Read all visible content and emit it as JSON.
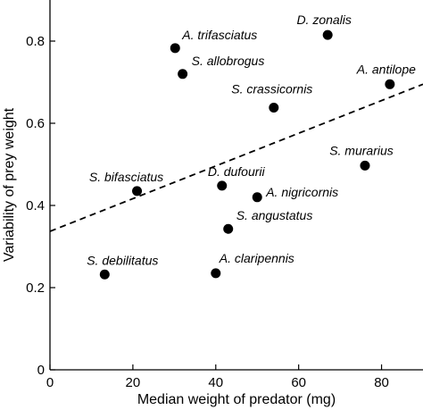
{
  "chart_data": {
    "type": "scatter",
    "title": "",
    "xlabel": "Median weight of predator (mg)",
    "ylabel": "Variability of prey weight",
    "xlim": [
      0,
      90
    ],
    "ylim": [
      0,
      0.9
    ],
    "xticks": [
      0,
      20,
      40,
      60,
      80
    ],
    "yticks": [
      0,
      0.2,
      0.4,
      0.6,
      0.8
    ],
    "xtick_labels": [
      "0",
      "20",
      "40",
      "60",
      "80"
    ],
    "ytick_labels": [
      "0",
      "0.2",
      "0.4",
      "0.6",
      "0.8"
    ],
    "grid": false,
    "legend": "none",
    "points": [
      {
        "label": "A. trifasciatus",
        "x": 30.2,
        "y": 0.783
      },
      {
        "label": "D. zonalis",
        "x": 67.0,
        "y": 0.815
      },
      {
        "label": "S. allobrogus",
        "x": 32.0,
        "y": 0.72
      },
      {
        "label": "A. antilope",
        "x": 82.0,
        "y": 0.695
      },
      {
        "label": "S. crassicornis",
        "x": 54.0,
        "y": 0.638
      },
      {
        "label": "S. murarius",
        "x": 76.0,
        "y": 0.497
      },
      {
        "label": "S. bifasciatus",
        "x": 21.0,
        "y": 0.435
      },
      {
        "label": "D. dufourii",
        "x": 41.5,
        "y": 0.448
      },
      {
        "label": "A. nigricornis",
        "x": 50.0,
        "y": 0.42
      },
      {
        "label": "S. angustatus",
        "x": 43.0,
        "y": 0.343
      },
      {
        "label": "S. debilitatus",
        "x": 13.2,
        "y": 0.232
      },
      {
        "label": "A. claripennis",
        "x": 40.0,
        "y": 0.235
      }
    ],
    "trendline": {
      "x": [
        0,
        90
      ],
      "y": [
        0.337,
        0.695
      ],
      "style": "dashed"
    },
    "colors": {
      "points": "#000000",
      "axes": "#000000",
      "trendline": "#000000"
    }
  }
}
